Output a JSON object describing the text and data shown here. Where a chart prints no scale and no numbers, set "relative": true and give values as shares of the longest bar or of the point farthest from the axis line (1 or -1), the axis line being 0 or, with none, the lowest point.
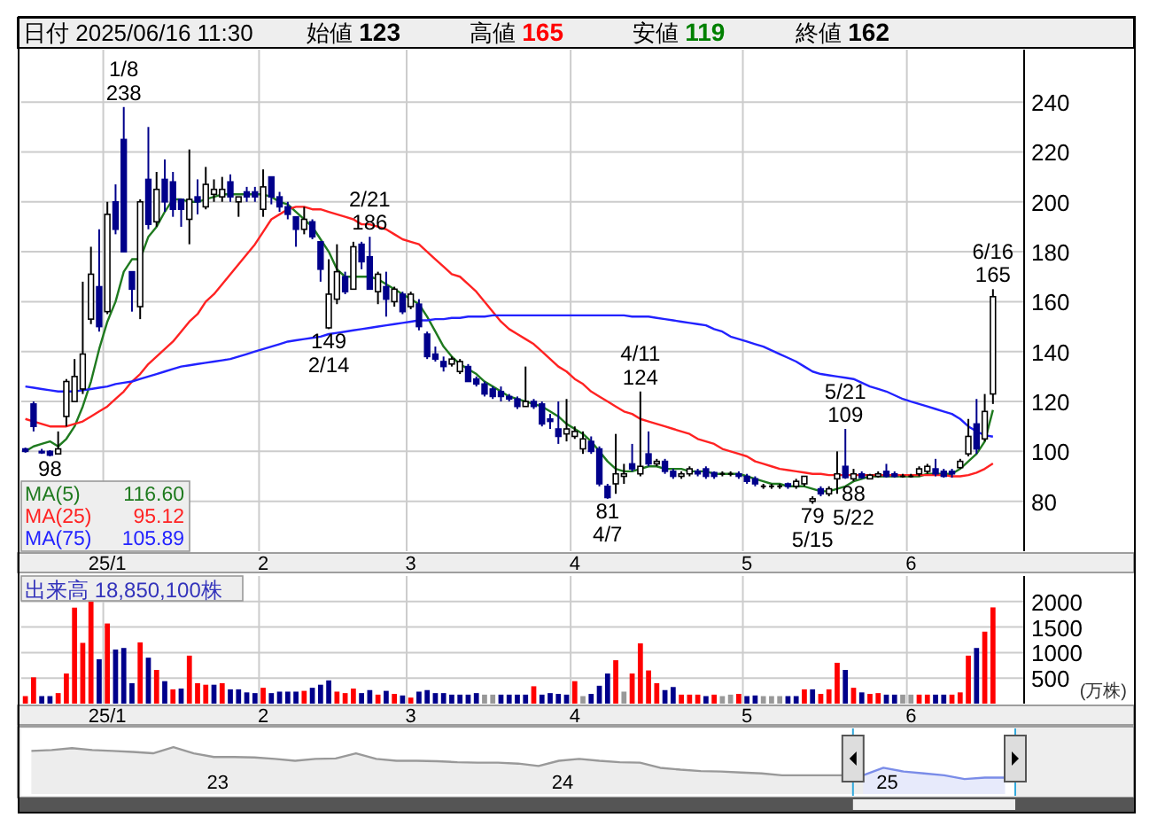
{
  "chart_data": [
    {
      "type": "candlestick",
      "title": "日付 2025/06/16 11:30",
      "categories": [
        null,
        null,
        null,
        null,
        null,
        null,
        null,
        null,
        null,
        null,
        "25/1",
        null,
        null,
        null,
        null,
        null,
        null,
        null,
        null,
        null,
        null,
        null,
        null,
        null,
        null,
        null,
        null,
        null,
        null,
        "2",
        null,
        null,
        null,
        null,
        null,
        null,
        null,
        null,
        null,
        null,
        null,
        null,
        null,
        null,
        null,
        null,
        null,
        "3",
        null,
        null,
        null,
        null,
        null,
        null,
        null,
        null,
        null,
        null,
        null,
        null,
        null,
        null,
        null,
        null,
        null,
        null,
        null,
        "4",
        null,
        null,
        null,
        null,
        null,
        null,
        null,
        null,
        null,
        null,
        null,
        null,
        null,
        null,
        null,
        null,
        null,
        null,
        null,
        null,
        "5",
        null,
        null,
        null,
        null,
        null,
        null,
        null,
        null,
        null,
        null,
        null,
        null,
        null,
        null,
        null,
        null,
        null,
        null,
        null,
        "6",
        null,
        null,
        null,
        null,
        null,
        null,
        null,
        null,
        null,
        null
      ],
      "ohlc": [
        [
          101,
          101.5,
          99.5,
          100
        ],
        [
          119,
          120,
          108,
          110
        ],
        [
          100,
          101,
          99,
          99.5
        ],
        [
          100,
          100.5,
          98,
          98.5
        ],
        [
          99,
          108,
          99,
          101
        ],
        [
          114,
          129,
          110,
          128
        ],
        [
          120,
          137,
          120,
          130
        ],
        [
          125,
          168,
          123,
          139
        ],
        [
          153,
          182,
          151,
          171
        ],
        [
          166,
          189,
          148,
          150
        ],
        [
          156,
          200,
          155,
          195
        ],
        [
          200,
          207,
          187,
          189
        ],
        [
          225,
          238,
          180,
          180
        ],
        [
          172,
          172,
          156,
          165
        ],
        [
          158,
          201,
          153,
          200
        ],
        [
          209,
          230,
          189,
          191
        ],
        [
          192,
          212,
          190,
          205
        ],
        [
          209,
          217,
          196,
          200
        ],
        [
          208,
          212,
          194,
          197
        ],
        [
          201,
          201,
          190,
          197
        ],
        [
          193,
          221,
          183,
          201
        ],
        [
          202,
          209,
          195,
          200
        ],
        [
          198,
          214,
          197,
          207
        ],
        [
          203,
          209,
          200,
          205
        ],
        [
          202,
          210,
          200,
          205
        ],
        [
          208,
          211,
          200,
          202
        ],
        [
          200,
          202,
          194,
          202
        ],
        [
          204,
          206,
          200,
          202
        ],
        [
          204,
          206,
          200,
          202
        ],
        [
          197,
          213,
          194,
          206
        ],
        [
          210,
          210,
          199,
          202
        ],
        [
          202,
          204,
          196,
          198
        ],
        [
          198,
          200,
          193,
          195
        ],
        [
          194,
          194,
          182,
          189
        ],
        [
          189,
          198,
          187,
          193
        ],
        [
          192,
          193,
          185,
          186
        ],
        [
          184,
          184,
          168,
          173
        ],
        [
          149.5,
          177,
          149,
          163
        ],
        [
          161,
          183,
          159,
          172
        ],
        [
          170,
          172,
          163,
          164
        ],
        [
          165,
          184,
          165,
          182
        ],
        [
          183,
          184,
          173,
          176
        ],
        [
          178,
          186,
          165,
          165
        ],
        [
          164,
          172,
          159,
          171
        ],
        [
          166,
          172,
          154,
          161
        ],
        [
          160,
          166,
          158,
          165
        ],
        [
          163,
          164,
          155,
          156
        ],
        [
          158,
          164,
          157,
          163
        ],
        [
          159,
          161,
          148.5,
          150
        ],
        [
          147,
          148,
          137,
          138
        ],
        [
          139,
          142,
          136,
          137
        ],
        [
          136,
          138,
          132,
          134
        ],
        [
          135,
          138,
          134,
          137
        ],
        [
          132,
          137,
          131,
          136
        ],
        [
          134,
          135,
          128,
          128
        ],
        [
          129,
          130,
          126,
          127
        ],
        [
          127,
          128,
          122,
          123
        ],
        [
          125,
          126,
          121,
          122
        ],
        [
          124,
          126,
          120,
          122
        ],
        [
          122,
          123,
          120,
          121
        ],
        [
          121,
          122,
          117,
          118
        ],
        [
          118,
          134,
          118,
          120
        ],
        [
          120,
          121,
          117,
          118
        ],
        [
          119,
          120,
          110,
          111
        ],
        [
          113,
          115,
          109,
          112
        ],
        [
          109,
          120,
          103,
          106
        ],
        [
          107,
          121,
          104,
          109
        ],
        [
          106,
          110,
          105,
          108
        ],
        [
          101,
          108,
          99,
          105
        ],
        [
          104,
          106,
          99,
          100
        ],
        [
          101,
          102,
          86,
          87
        ],
        [
          86,
          87,
          81,
          81.5
        ],
        [
          87,
          107,
          83,
          91
        ],
        [
          90,
          95,
          87,
          91
        ],
        [
          95,
          103,
          92,
          93
        ],
        [
          91,
          124,
          90,
          94
        ],
        [
          99,
          108,
          94,
          95
        ],
        [
          95,
          97,
          94,
          96
        ],
        [
          96,
          97,
          91,
          92
        ],
        [
          92,
          93,
          89,
          90
        ],
        [
          90,
          92,
          89,
          91
        ],
        [
          91,
          94,
          90,
          93
        ],
        [
          92,
          93,
          90,
          91
        ],
        [
          93,
          94,
          89,
          90
        ],
        [
          91.5,
          92,
          89,
          90
        ],
        [
          91,
          92,
          90,
          91
        ],
        [
          91,
          92,
          90,
          91
        ],
        [
          91,
          92,
          89,
          90
        ],
        [
          90,
          91,
          87,
          88
        ],
        [
          89,
          90,
          86,
          87
        ],
        [
          86,
          87,
          85,
          86
        ],
        [
          86,
          87,
          85,
          86
        ],
        [
          86,
          87,
          85,
          86
        ],
        [
          87,
          87.5,
          85,
          86
        ],
        [
          86,
          89,
          85,
          88
        ],
        [
          87,
          90,
          86,
          90
        ],
        [
          80,
          82,
          79,
          81
        ],
        [
          85,
          86,
          82,
          83
        ],
        [
          83,
          86,
          82,
          85
        ],
        [
          89,
          100,
          83,
          91
        ],
        [
          94,
          109,
          89,
          89.5
        ],
        [
          89,
          93,
          88,
          91
        ],
        [
          91,
          92,
          89,
          89.5
        ],
        [
          89,
          91,
          89,
          90.5
        ],
        [
          90,
          92,
          89.5,
          91
        ],
        [
          92,
          95,
          89.5,
          90
        ],
        [
          91,
          92,
          89.5,
          90
        ],
        [
          90,
          91,
          89.5,
          90
        ],
        [
          90,
          91,
          89.5,
          90
        ],
        [
          91,
          94,
          90,
          93
        ],
        [
          92,
          95,
          91,
          94
        ],
        [
          93,
          97,
          90,
          91
        ],
        [
          92,
          93,
          89.5,
          90
        ],
        [
          92,
          93,
          89.5,
          91
        ],
        [
          93.5,
          97,
          93,
          96
        ],
        [
          99,
          113,
          98,
          106
        ],
        [
          111,
          121,
          99,
          101
        ],
        [
          105,
          123,
          104,
          116
        ],
        [
          123,
          165,
          119,
          162
        ]
      ],
      "series": [
        {
          "name": "MA(5)",
          "type": "line",
          "color": "#1f7a1f",
          "values": [
            100,
            102,
            103,
            104,
            102,
            105,
            110,
            118,
            128,
            141,
            152,
            160,
            172,
            177,
            177,
            186,
            190,
            196,
            201,
            201,
            200,
            200,
            201,
            202,
            203,
            203,
            203,
            203,
            203,
            203,
            202,
            200,
            199,
            196,
            193,
            190,
            185,
            180,
            173,
            170,
            170,
            170,
            170,
            169,
            167,
            165,
            163,
            161,
            159,
            154,
            148,
            142,
            138,
            135,
            133,
            131,
            128,
            126,
            124,
            122,
            121,
            120,
            119,
            118,
            116,
            114,
            111,
            109,
            107,
            104,
            100,
            96,
            93,
            92,
            92,
            93,
            94,
            94,
            93,
            93,
            93,
            92,
            92,
            92,
            91,
            91,
            91,
            91,
            90,
            89,
            88,
            87,
            87,
            86,
            86,
            86,
            85,
            84,
            84,
            85,
            86,
            88,
            89,
            90,
            90,
            90,
            90,
            90,
            90,
            90,
            91,
            91,
            91,
            91,
            93,
            96,
            99,
            104,
            116.6
          ]
        },
        {
          "name": "MA(25)",
          "type": "line",
          "color": "#ff2222",
          "values": [
            113,
            112,
            111,
            110,
            110,
            110,
            111,
            112,
            114,
            116,
            118,
            121,
            124,
            128,
            131,
            135,
            138,
            141,
            144,
            148,
            152,
            155,
            160,
            163,
            167,
            171,
            175,
            179,
            183,
            188,
            193,
            195,
            197,
            198,
            198,
            197,
            197,
            196,
            195,
            194,
            193,
            191,
            191,
            190,
            189,
            187,
            185,
            184,
            183,
            180,
            177,
            174,
            171,
            170,
            167,
            164,
            160,
            156,
            152,
            149,
            147,
            145,
            143,
            140,
            137,
            134,
            132,
            129,
            127,
            124,
            122,
            120,
            118,
            116,
            115,
            113,
            112,
            111,
            110,
            109,
            108,
            107,
            105,
            104,
            103,
            101,
            100,
            99,
            98,
            96,
            95,
            94,
            93,
            92.5,
            92,
            91.5,
            91,
            91,
            90.5,
            90.5,
            90.5,
            90.5,
            90.5,
            90.5,
            90.5,
            90.5,
            90.5,
            90.5,
            90.5,
            90.5,
            90.5,
            90.5,
            90.5,
            90,
            90,
            90.5,
            91.5,
            93,
            95.12
          ]
        },
        {
          "name": "MA(75)",
          "type": "line",
          "color": "#2222ff",
          "values": [
            126,
            125.5,
            125,
            124.5,
            124,
            124,
            124,
            124.5,
            125,
            125.5,
            126,
            127,
            127.5,
            128,
            129,
            130,
            131,
            132,
            133,
            134,
            134.5,
            135,
            135.5,
            136,
            136.5,
            137,
            138,
            139,
            140,
            141,
            142,
            143,
            144,
            144.5,
            145,
            145.5,
            146,
            147,
            147.5,
            148,
            148.5,
            149,
            149.5,
            150,
            150.5,
            151,
            151.5,
            152,
            152.5,
            152.5,
            153,
            153,
            153.5,
            153.5,
            154,
            154,
            154,
            154.5,
            154.5,
            154.5,
            154.5,
            154.5,
            154.5,
            154.5,
            154.5,
            154.5,
            154.5,
            154.5,
            154.5,
            154.5,
            154.5,
            154.5,
            154.5,
            154.5,
            154,
            154,
            154,
            153.5,
            153,
            152.5,
            152,
            151.5,
            151,
            150.5,
            149,
            148,
            146,
            145,
            144,
            143,
            142,
            140.5,
            139,
            137.5,
            136,
            134,
            132,
            131,
            130.5,
            130,
            129.5,
            129,
            127.5,
            126,
            125,
            124,
            122.5,
            121,
            120,
            119,
            118,
            117,
            116,
            115,
            113,
            110,
            108,
            106.5,
            105.89
          ]
        }
      ],
      "ylim": [
        60,
        261
      ],
      "yticks": [
        80,
        100,
        120,
        140,
        160,
        180,
        200,
        220,
        240
      ],
      "grid": true,
      "legend": "bottom left",
      "annotations": [
        "始値 123",
        "高値 165",
        "安値 119",
        "終値 162",
        "116.60",
        "95.12",
        "105.89",
        {
          "text": "98",
          "y": 98
        },
        {
          "text": "1/8\n238",
          "y": 238
        },
        {
          "text": "149\n2/14",
          "y": 149
        },
        {
          "text": "2/21\n186",
          "y": 186
        },
        {
          "text": "81\n4/7",
          "y": 81
        },
        {
          "text": "4/11\n124",
          "y": 124
        },
        {
          "text": "79\n5/15",
          "y": 79
        },
        {
          "text": "5/21\n109",
          "y": 109
        },
        {
          "text": "88\n5/22",
          "y": 88
        },
        {
          "text": "6/16\n165",
          "y": 165
        }
      ]
    },
    {
      "type": "bar",
      "title": "出来高 18,850,100株",
      "ylabel": "(万株)",
      "categories": [
        null,
        null,
        null,
        null,
        null,
        null,
        null,
        null,
        null,
        null,
        "25/1",
        null,
        null,
        null,
        null,
        null,
        null,
        null,
        null,
        null,
        null,
        null,
        null,
        null,
        null,
        null,
        null,
        null,
        null,
        "2",
        null,
        null,
        null,
        null,
        null,
        null,
        null,
        null,
        null,
        null,
        null,
        null,
        null,
        null,
        null,
        null,
        null,
        "3",
        null,
        null,
        null,
        null,
        null,
        null,
        null,
        null,
        null,
        null,
        null,
        null,
        null,
        null,
        null,
        null,
        null,
        null,
        null,
        "4",
        null,
        null,
        null,
        null,
        null,
        null,
        null,
        null,
        null,
        null,
        null,
        null,
        null,
        null,
        null,
        null,
        null,
        null,
        null,
        null,
        "5",
        null,
        null,
        null,
        null,
        null,
        null,
        null,
        null,
        null,
        null,
        null,
        null,
        null,
        null,
        null,
        null,
        null,
        null,
        null,
        "6",
        null,
        null,
        null,
        null,
        null,
        null,
        null,
        null,
        null,
        null
      ],
      "values": [
        147,
        515,
        147,
        147,
        206,
        590,
        1880,
        1190,
        2000,
        870,
        1570,
        1060,
        1090,
        400,
        1200,
        900,
        660,
        440,
        280,
        295,
        940,
        400,
        370,
        370,
        400,
        280,
        280,
        220,
        206,
        310,
        206,
        235,
        235,
        235,
        250,
        310,
        370,
        455,
        235,
        206,
        295,
        206,
        265,
        176,
        250,
        190,
        160,
        118,
        235,
        265,
        206,
        206,
        176,
        176,
        176,
        206,
        176,
        176,
        176,
        176,
        176,
        176,
        340,
        176,
        206,
        190,
        176,
        440,
        147,
        190,
        350,
        590,
        850,
        235,
        590,
        1180,
        650,
        400,
        265,
        325,
        176,
        176,
        176,
        147,
        176,
        147,
        176,
        190,
        147,
        160,
        147,
        147,
        147,
        147,
        147,
        280,
        280,
        190,
        280,
        800,
        660,
        310,
        220,
        190,
        206,
        176,
        176,
        176,
        176,
        176,
        176,
        176,
        176,
        176,
        220,
        940,
        1090,
        1410,
        1885
      ],
      "colors": [
        "#ff0000",
        "#ff0000",
        "#00008b",
        "#00008b",
        "#ff0000",
        "#ff0000",
        "#ff0000",
        "#ff0000",
        "#ff0000",
        "#00008b",
        "#ff0000",
        "#00008b",
        "#00008b",
        "#00008b",
        "#ff0000",
        "#00008b",
        "#ff0000",
        "#00008b",
        "#ff0000",
        "#00008b",
        "#ff0000",
        "#ff0000",
        "#ff0000",
        "#00008b",
        "#ff0000",
        "#00008b",
        "#00008b",
        "#00008b",
        "#00008b",
        "#ff0000",
        "#00008b",
        "#00008b",
        "#00008b",
        "#00008b",
        "#ff0000",
        "#00008b",
        "#00008b",
        "#00008b",
        "#ff0000",
        "#ff0000",
        "#ff0000",
        "#00008b",
        "#00008b",
        "#ff0000",
        "#00008b",
        "#ff0000",
        "#00008b",
        "#ff0000",
        "#00008b",
        "#00008b",
        "#00008b",
        "#00008b",
        "#00008b",
        "#00008b",
        "#00008b",
        "#00008b",
        "#999999",
        "#999999",
        "#00008b",
        "#00008b",
        "#00008b",
        "#00008b",
        "#ff0000",
        "#00008b",
        "#00008b",
        "#00008b",
        "#00008b",
        "#ff0000",
        "#999999",
        "#00008b",
        "#00008b",
        "#00008b",
        "#ff0000",
        "#999999",
        "#ff0000",
        "#ff0000",
        "#ff0000",
        "#ff0000",
        "#00008b",
        "#00008b",
        "#ff0000",
        "#ff0000",
        "#ff0000",
        "#00008b",
        "#ff0000",
        "#999999",
        "#999999",
        "#ff0000",
        "#00008b",
        "#00008b",
        "#999999",
        "#999999",
        "#999999",
        "#00008b",
        "#00008b",
        "#ff0000",
        "#00008b",
        "#ff0000",
        "#ff0000",
        "#ff0000",
        "#00008b",
        "#ff0000",
        "#00008b",
        "#ff0000",
        "#ff0000",
        "#00008b",
        "#00008b",
        "#999999",
        "#999999",
        "#ff0000",
        "#ff0000",
        "#00008b",
        "#00008b",
        "#ff0000",
        "#ff0000",
        "#ff0000",
        "#00008b",
        "#ff0000",
        "#ff0000"
      ],
      "ylim": [
        0,
        2500
      ],
      "yticks": [
        500,
        1000,
        1500,
        2000
      ],
      "grid": true
    },
    {
      "type": "area",
      "relative": true,
      "tick_labels": "x",
      "categories": [
        null,
        null,
        null,
        null,
        null,
        null,
        null,
        null,
        null,
        "23",
        null,
        null,
        null,
        null,
        null,
        null,
        null,
        null,
        null,
        null,
        null,
        null,
        null,
        null,
        null,
        null,
        "24",
        null,
        null,
        null,
        null,
        null,
        null,
        null,
        null,
        null,
        null,
        null,
        null,
        null,
        null,
        null,
        "25",
        null,
        null,
        null,
        null,
        null,
        null
      ],
      "series": [
        {
          "color": "#999999",
          "values": [
            0.92,
            0.94,
            0.98,
            0.94,
            0.92,
            0.9,
            0.87,
            1,
            0.87,
            0.79,
            0.79,
            0.78,
            0.75,
            0.71,
            0.75,
            0.76,
            0.87,
            0.75,
            0.71,
            0.71,
            0.7,
            0.68,
            0.67,
            0.67,
            0.65,
            0.6,
            0.71,
            0.75,
            0.71,
            0.68,
            0.67,
            0.56,
            0.52,
            0.49,
            0.48,
            0.46,
            0.44,
            0.4,
            0.4,
            0.4,
            0.4,
            0.4,
            null,
            null,
            null,
            null,
            null,
            null,
            null
          ]
        },
        {
          "color": "#7a8ce8",
          "values": [
            null,
            null,
            null,
            null,
            null,
            null,
            null,
            null,
            null,
            null,
            null,
            null,
            null,
            null,
            null,
            null,
            null,
            null,
            null,
            null,
            null,
            null,
            null,
            null,
            null,
            null,
            null,
            null,
            null,
            null,
            null,
            null,
            null,
            null,
            null,
            null,
            null,
            null,
            null,
            null,
            null,
            0.4,
            0.56,
            0.48,
            0.44,
            0.4,
            0.32,
            0.35,
            0.35
          ]
        }
      ]
    }
  ]
}
